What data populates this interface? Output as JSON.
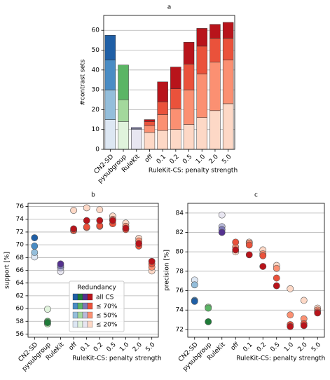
{
  "chart_data": [
    {
      "type": "bar",
      "title": "a",
      "ylabel": "#contrast sets",
      "xlabel": "RuleKit-CS: penalty strength",
      "categories": [
        "CN2-SD",
        "pysubgroup",
        "RuleKit",
        "off",
        "0.1",
        "0.2",
        "0.5",
        "1.0",
        "2.0",
        "5.0"
      ],
      "ylim": [
        0,
        67.5
      ],
      "yticks": [
        0,
        10,
        20,
        30,
        40,
        50,
        60
      ],
      "grid": true,
      "series": [
        {
          "colors": [
            "#1f5fa6",
            "#1e7b38",
            "#54318f",
            "#b8141b",
            "#b8141b",
            "#b8141b",
            "#b8141b",
            "#b8141b",
            "#b8141b",
            "#b8141b"
          ],
          "values": [
            12.5,
            0,
            0,
            1,
            10,
            11,
            11,
            9,
            7,
            8
          ]
        },
        {
          "colors": [
            "#4a8cc4",
            "#5bb565",
            "#7d79b8",
            "#ea523b",
            "#ea523b",
            "#ea523b",
            "#ea523b",
            "#ea523b",
            "#ea523b",
            "#ea523b"
          ],
          "values": [
            15,
            17.5,
            0.5,
            2,
            6.5,
            10,
            13,
            14,
            12,
            11
          ]
        },
        {
          "colors": [
            "#94bedb",
            "#a3d89c",
            "#b9bada",
            "#fb9072",
            "#fb9072",
            "#fb9072",
            "#fb9072",
            "#fb9072",
            "#fb9072",
            "#fb9072"
          ],
          "values": [
            15,
            11,
            0.5,
            3.5,
            8,
            10.5,
            17.5,
            22,
            24.5,
            22
          ]
        },
        {
          "colors": [
            "#dde7f3",
            "#e0f3dc",
            "#e8e6f1",
            "#fdd8c6",
            "#fdd8c6",
            "#fdd8c6",
            "#fdd8c6",
            "#fdd8c6",
            "#fdd8c6",
            "#fdd8c6"
          ],
          "values": [
            15,
            14,
            10,
            8.5,
            9.5,
            10,
            12.5,
            16,
            19.5,
            23
          ]
        }
      ]
    },
    {
      "type": "dot",
      "title": "b",
      "ylabel": "support [%]",
      "xlabel": "RuleKit-CS: penalty strength",
      "categories": [
        "CN2-SD",
        "pysubgroup",
        "RuleKit",
        "off",
        "0.1",
        "0.2",
        "0.5",
        "1.0",
        "2.0",
        "5.0"
      ],
      "ylim": [
        55.5,
        76.5
      ],
      "yticks": [
        56,
        58,
        60,
        62,
        64,
        66,
        68,
        70,
        72,
        74,
        76
      ],
      "grid": true,
      "legend_title": "Redundancy",
      "legend_loc": "lower center",
      "series": [
        {
          "name": "all CS",
          "colors": [
            "#1f5fa6",
            "#1e7b38",
            "#54318f",
            "#b8141b",
            "#b8141b",
            "#b8141b",
            "#b8141b",
            "#b8141b",
            "#b8141b",
            "#b8141b"
          ],
          "values": [
            71.1,
            57.8,
            67.0,
            72.5,
            73.8,
            73.8,
            73.8,
            72.6,
            70.2,
            67.4
          ]
        },
        {
          "name": "≤ 70%",
          "colors": [
            "#4a8cc4",
            "#5bb565",
            "#7d79b8",
            "#ea523b",
            "#ea523b",
            "#ea523b",
            "#ea523b",
            "#ea523b",
            "#ea523b",
            "#ea523b"
          ],
          "values": [
            69.8,
            58.0,
            66.7,
            72.3,
            72.8,
            73.0,
            73.3,
            72.4,
            69.8,
            67.0
          ]
        },
        {
          "name": "≤ 50%",
          "colors": [
            "#94bedb",
            "#a3d89c",
            "#b9bada",
            "#fb9072",
            "#fb9072",
            "#fb9072",
            "#fb9072",
            "#fb9072",
            "#fb9072",
            "#fb9072"
          ],
          "values": [
            68.8,
            57.6,
            66.4,
            72.2,
            72.7,
            72.9,
            74.0,
            72.9,
            70.6,
            66.5
          ]
        },
        {
          "name": "≤ 20%",
          "colors": [
            "#dde7f3",
            "#e0f3dc",
            "#e8e6f1",
            "#fdd8c6",
            "#fdd8c6",
            "#fdd8c6",
            "#fdd8c6",
            "#fdd8c6",
            "#fdd8c6",
            "#fdd8c6"
          ],
          "values": [
            68.1,
            59.9,
            65.8,
            75.4,
            75.8,
            75.5,
            74.5,
            73.4,
            71.0,
            65.9
          ]
        }
      ]
    },
    {
      "type": "dot",
      "title": "c",
      "ylabel": "precision [%]",
      "xlabel": "RuleKit-CS: penalty strength",
      "categories": [
        "CN2-SD",
        "pysubgroup",
        "RuleKit",
        "off",
        "0.1",
        "0.2",
        "0.5",
        "1.0",
        "2.0",
        "5.0"
      ],
      "ylim": [
        71.2,
        85
      ],
      "yticks": [
        72,
        74,
        76,
        78,
        80,
        82,
        84
      ],
      "grid": true,
      "series": [
        {
          "colors": [
            "#1f5fa6",
            "#1e7b38",
            "#54318f",
            "#b8141b",
            "#b8141b",
            "#b8141b",
            "#b8141b",
            "#b8141b",
            "#b8141b",
            "#b8141b"
          ],
          "values": [
            74.9,
            72.8,
            82.0,
            80.2,
            79.7,
            78.5,
            76.5,
            72.3,
            72.4,
            73.7
          ]
        },
        {
          "colors": [
            "#4a8cc4",
            "#5bb565",
            "#7d79b8",
            "#ea523b",
            "#ea523b",
            "#ea523b",
            "#ea523b",
            "#ea523b",
            "#ea523b",
            "#ea523b"
          ],
          "values": [
            75.0,
            74.2,
            82.3,
            81.0,
            80.7,
            79.6,
            77.3,
            72.5,
            72.6,
            73.8
          ]
        },
        {
          "colors": [
            "#94bedb",
            "#a3d89c",
            "#b9bada",
            "#fb9072",
            "#fb9072",
            "#fb9072",
            "#fb9072",
            "#fb9072",
            "#fb9072",
            "#fb9072"
          ],
          "values": [
            76.6,
            74.3,
            82.6,
            80.5,
            80.9,
            79.8,
            78.3,
            73.5,
            73.1,
            74.0
          ]
        },
        {
          "colors": [
            "#dde7f3",
            "#e0f3dc",
            "#e8e6f1",
            "#fdd8c6",
            "#fdd8c6",
            "#fdd8c6",
            "#fdd8c6",
            "#fdd8c6",
            "#fdd8c6",
            "#fdd8c6"
          ],
          "values": [
            77.1,
            74.3,
            83.8,
            80.0,
            81.0,
            80.2,
            78.6,
            76.2,
            75.0,
            74.2
          ]
        }
      ]
    }
  ]
}
